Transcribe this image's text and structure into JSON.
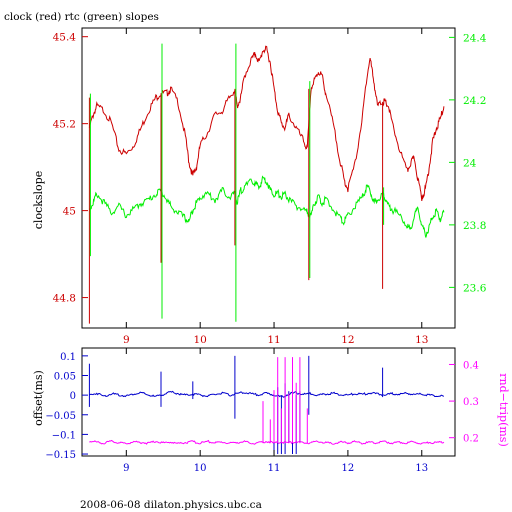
{
  "title": "clock (red) rtc (green) slopes",
  "footer": "2008-06-08 dilaton.physics.ubc.ca",
  "colors": {
    "red": "#cc0000",
    "green": "#00ee00",
    "blue": "#0000cc",
    "magenta": "#ff00ff",
    "axis": "#000000"
  },
  "chart_data": [
    {
      "type": "line",
      "title": "clock (red) rtc (green) slopes",
      "ylabel": "clockslope",
      "xlim": [
        8.4,
        13.45
      ],
      "x_ticks": [
        "9",
        "10",
        "11",
        "12",
        "13"
      ],
      "ylim_left": [
        44.73,
        45.42
      ],
      "yticks_left": [
        "44.8",
        "45",
        "45.2",
        "45.4"
      ],
      "ylim_right": [
        23.47,
        24.43
      ],
      "yticks_right": [
        "23.6",
        "23.8",
        "24",
        "24.2",
        "24.4"
      ],
      "series": [
        {
          "name": "clock",
          "color": "#cc0000",
          "axis": "left",
          "x": [
            8.5,
            8.55,
            8.6,
            8.7,
            8.8,
            8.9,
            9.0,
            9.1,
            9.2,
            9.3,
            9.4,
            9.47,
            9.55,
            9.6,
            9.7,
            9.8,
            9.85,
            9.9,
            9.95,
            10.0,
            10.1,
            10.2,
            10.3,
            10.4,
            10.47,
            10.5,
            10.55,
            10.6,
            10.7,
            10.75,
            10.8,
            10.85,
            10.9,
            10.95,
            11.0,
            11.05,
            11.1,
            11.15,
            11.2,
            11.3,
            11.4,
            11.45,
            11.5,
            11.55,
            11.6,
            11.65,
            11.7,
            11.8,
            11.9,
            11.95,
            12.0,
            12.1,
            12.2,
            12.25,
            12.3,
            12.35,
            12.4,
            12.47,
            12.5,
            12.55,
            12.6,
            12.7,
            12.8,
            12.85,
            12.9,
            12.95,
            13.0,
            13.05,
            13.1,
            13.15,
            13.2,
            13.25,
            13.3
          ],
          "y": [
            45.19,
            45.22,
            45.24,
            45.23,
            45.2,
            45.14,
            45.13,
            45.15,
            45.19,
            45.23,
            45.26,
            45.27,
            45.27,
            45.28,
            45.25,
            45.17,
            45.11,
            45.08,
            45.1,
            45.15,
            45.18,
            45.22,
            45.23,
            45.26,
            45.28,
            45.24,
            45.26,
            45.31,
            45.35,
            45.36,
            45.34,
            45.37,
            45.37,
            45.34,
            45.28,
            45.23,
            45.2,
            45.19,
            45.22,
            45.19,
            45.16,
            45.14,
            45.28,
            45.3,
            45.32,
            45.31,
            45.27,
            45.2,
            45.11,
            45.07,
            45.05,
            45.11,
            45.22,
            45.3,
            45.35,
            45.3,
            45.24,
            45.25,
            45.25,
            45.24,
            45.2,
            45.14,
            45.09,
            45.11,
            45.12,
            45.07,
            45.03,
            45.05,
            45.1,
            45.16,
            45.19,
            45.21,
            45.24
          ]
        },
        {
          "name": "rtc",
          "color": "#00ee00",
          "axis": "right",
          "x": [
            8.5,
            8.55,
            8.6,
            8.7,
            8.8,
            8.9,
            9.0,
            9.1,
            9.2,
            9.3,
            9.4,
            9.47,
            9.55,
            9.6,
            9.7,
            9.8,
            9.85,
            9.9,
            9.95,
            10.0,
            10.1,
            10.2,
            10.3,
            10.4,
            10.47,
            10.5,
            10.55,
            10.6,
            10.7,
            10.75,
            10.8,
            10.85,
            10.9,
            10.95,
            11.0,
            11.05,
            11.1,
            11.15,
            11.2,
            11.3,
            11.4,
            11.45,
            11.5,
            11.55,
            11.6,
            11.65,
            11.7,
            11.8,
            11.9,
            11.95,
            12.0,
            12.1,
            12.2,
            12.25,
            12.3,
            12.35,
            12.4,
            12.47,
            12.5,
            12.55,
            12.6,
            12.7,
            12.8,
            12.85,
            12.9,
            12.95,
            13.0,
            13.05,
            13.1,
            13.15,
            13.2,
            13.25,
            13.3
          ],
          "y": [
            23.85,
            23.87,
            23.9,
            23.87,
            23.84,
            23.86,
            23.83,
            23.85,
            23.87,
            23.88,
            23.9,
            23.91,
            23.88,
            23.86,
            23.84,
            23.82,
            23.81,
            23.85,
            23.87,
            23.89,
            23.9,
            23.88,
            23.91,
            23.89,
            23.9,
            23.87,
            23.91,
            23.92,
            23.94,
            23.93,
            23.92,
            23.95,
            23.94,
            23.91,
            23.9,
            23.9,
            23.89,
            23.9,
            23.88,
            23.86,
            23.85,
            23.84,
            23.83,
            23.87,
            23.89,
            23.87,
            23.88,
            23.85,
            23.82,
            23.81,
            23.83,
            23.86,
            23.89,
            23.92,
            23.91,
            23.87,
            23.88,
            23.9,
            23.89,
            23.86,
            23.85,
            23.83,
            23.8,
            23.78,
            23.83,
            23.85,
            23.8,
            23.77,
            23.79,
            23.83,
            23.84,
            23.82,
            23.84
          ]
        }
      ],
      "spikes": [
        {
          "x": 8.5,
          "left_min": 44.74,
          "left_max": 45.26,
          "right_min": 23.7,
          "right_max": 24.22
        },
        {
          "x": 9.47,
          "left_min": 44.88,
          "left_max": 45.27,
          "right_min": 23.5,
          "right_max": 24.38
        },
        {
          "x": 10.47,
          "left_min": 44.92,
          "left_max": 45.28,
          "right_min": 23.49,
          "right_max": 24.38
        },
        {
          "x": 11.47,
          "left_min": 44.84,
          "left_max": 45.28,
          "right_min": 23.63,
          "right_max": 24.26
        },
        {
          "x": 12.47,
          "left_min": 44.82,
          "left_max": 45.25,
          "right_min": 23.8,
          "right_max": 23.92
        }
      ]
    },
    {
      "type": "line",
      "ylabel": "offset(ms)",
      "y2label": "rnd−trip(ms)",
      "xlim": [
        8.4,
        13.45
      ],
      "x_ticks": [
        "9",
        "10",
        "11",
        "12",
        "13"
      ],
      "ylim_left": [
        -0.155,
        0.12
      ],
      "yticks_left": [
        "−0.15",
        "−0.1",
        "−0.05",
        "0",
        "0.05",
        "0.1"
      ],
      "ylim_right": [
        0.15,
        0.445
      ],
      "yticks_right": [
        "0.2",
        "0.3",
        "0.4"
      ],
      "series": [
        {
          "name": "offset",
          "color": "#0000cc",
          "axis": "left",
          "x": [
            8.5,
            8.6,
            8.7,
            8.8,
            8.9,
            9.0,
            9.1,
            9.2,
            9.3,
            9.4,
            9.5,
            9.6,
            9.7,
            9.8,
            9.9,
            10.0,
            10.1,
            10.2,
            10.3,
            10.4,
            10.5,
            10.6,
            10.7,
            10.8,
            10.9,
            11.0,
            11.1,
            11.2,
            11.3,
            11.4,
            11.5,
            11.6,
            11.7,
            11.8,
            11.9,
            12.0,
            12.1,
            12.2,
            12.3,
            12.4,
            12.5,
            12.6,
            12.7,
            12.8,
            12.9,
            13.0,
            13.1,
            13.2,
            13.3
          ],
          "y": [
            0.0,
            0.005,
            -0.003,
            0.004,
            0.0,
            -0.002,
            0.003,
            0.006,
            0.0,
            -0.004,
            0.002,
            0.008,
            0.004,
            0.0,
            0.003,
            0.001,
            -0.003,
            0.002,
            0.005,
            0.0,
            0.004,
            0.007,
            0.003,
            0.001,
            0.005,
            0.0,
            -0.005,
            0.003,
            0.006,
            0.002,
            0.004,
            0.0,
            0.003,
            0.005,
            0.001,
            0.0,
            0.004,
            0.002,
            0.006,
            0.003,
            0.0,
            0.004,
            0.002,
            0.005,
            0.001,
            0.003,
            0.0,
            -0.002,
            -0.003
          ]
        },
        {
          "name": "rnd-trip",
          "color": "#ff00ff",
          "axis": "right",
          "x": [
            8.5,
            8.6,
            8.7,
            8.8,
            8.9,
            9.0,
            9.1,
            9.2,
            9.3,
            9.4,
            9.5,
            9.6,
            9.7,
            9.8,
            9.9,
            10.0,
            10.1,
            10.2,
            10.3,
            10.4,
            10.5,
            10.6,
            10.7,
            10.8,
            10.9,
            11.0,
            11.1,
            11.2,
            11.3,
            11.4,
            11.5,
            11.6,
            11.7,
            11.8,
            11.9,
            12.0,
            12.1,
            12.2,
            12.3,
            12.4,
            12.5,
            12.6,
            12.7,
            12.8,
            12.9,
            13.0,
            13.1,
            13.2,
            13.3
          ],
          "y": [
            0.19,
            0.188,
            0.185,
            0.19,
            0.186,
            0.184,
            0.189,
            0.187,
            0.185,
            0.19,
            0.186,
            0.188,
            0.184,
            0.187,
            0.189,
            0.185,
            0.19,
            0.186,
            0.188,
            0.185,
            0.187,
            0.189,
            0.184,
            0.186,
            0.19,
            0.185,
            0.188,
            0.186,
            0.189,
            0.185,
            0.187,
            0.19,
            0.186,
            0.184,
            0.188,
            0.186,
            0.189,
            0.185,
            0.187,
            0.186,
            0.19,
            0.185,
            0.188,
            0.186,
            0.189,
            0.184,
            0.187,
            0.186,
            0.188
          ]
        }
      ],
      "offset_spikes": [
        {
          "x": 8.5,
          "min": -0.03,
          "max": 0.08
        },
        {
          "x": 9.47,
          "min": -0.03,
          "max": 0.06
        },
        {
          "x": 9.9,
          "min": -0.01,
          "max": 0.035
        },
        {
          "x": 10.47,
          "min": -0.06,
          "max": 0.1
        },
        {
          "x": 11.0,
          "min": -0.15,
          "max": 0.0
        },
        {
          "x": 11.05,
          "min": -0.15,
          "max": 0.02
        },
        {
          "x": 11.1,
          "min": -0.15,
          "max": 0.0
        },
        {
          "x": 11.15,
          "min": -0.15,
          "max": 0.03
        },
        {
          "x": 11.2,
          "min": -0.12,
          "max": 0.01
        },
        {
          "x": 11.25,
          "min": -0.15,
          "max": 0.01
        },
        {
          "x": 11.3,
          "min": -0.15,
          "max": 0.0
        },
        {
          "x": 11.35,
          "min": -0.12,
          "max": 0.01
        },
        {
          "x": 11.47,
          "min": -0.05,
          "max": 0.1
        },
        {
          "x": 12.47,
          "min": -0.005,
          "max": 0.07
        }
      ],
      "rnd_trip_spikes": [
        {
          "x": 10.85,
          "max": 0.3
        },
        {
          "x": 10.95,
          "max": 0.25
        },
        {
          "x": 11.0,
          "max": 0.33
        },
        {
          "x": 11.05,
          "max": 0.42
        },
        {
          "x": 11.1,
          "max": 0.28
        },
        {
          "x": 11.15,
          "max": 0.42
        },
        {
          "x": 11.2,
          "max": 0.32
        },
        {
          "x": 11.25,
          "max": 0.42
        },
        {
          "x": 11.3,
          "max": 0.35
        },
        {
          "x": 11.35,
          "max": 0.42
        },
        {
          "x": 11.45,
          "max": 0.28
        }
      ]
    }
  ]
}
